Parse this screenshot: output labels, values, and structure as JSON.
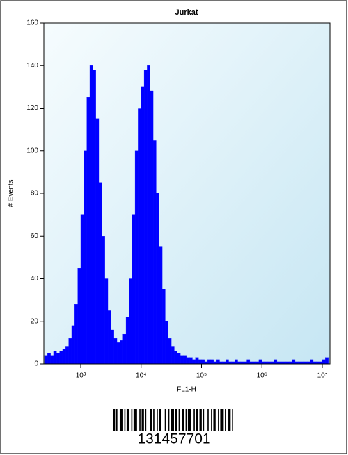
{
  "chart_data": {
    "type": "histogram",
    "title": "Jurkat",
    "x_label": "FL1-H",
    "y_label": "# Events",
    "xscale": "log",
    "color": "#0000ff",
    "xlim": [
      245,
      13400000
    ],
    "xticks": [
      {
        "value": 1000,
        "label": "10³"
      },
      {
        "value": 10000,
        "label": "10⁴"
      },
      {
        "value": 100000,
        "label": "10⁵"
      },
      {
        "value": 1000000,
        "label": "10⁶"
      },
      {
        "value": 10000000,
        "label": "10⁷"
      }
    ],
    "ylim": [
      0,
      160
    ],
    "yticks": [
      0,
      20,
      40,
      60,
      80,
      100,
      120,
      140,
      160
    ],
    "bins": [
      251.2,
      281.8,
      316.2,
      354.8,
      398.1,
      446.7,
      501.2,
      562.3,
      631.0,
      707.9,
      794.3,
      891.3,
      1000,
      1122,
      1259,
      1413,
      1585,
      1778,
      1995,
      2239,
      2512,
      2818,
      3162,
      3548,
      3981,
      4467,
      5012,
      5623,
      6310,
      7079,
      7943,
      8913,
      10000,
      11220,
      12590,
      14130,
      15850,
      17780,
      19950,
      22390,
      25120,
      28180,
      31620,
      35480,
      39810,
      44670,
      50120,
      56230,
      63100,
      70790,
      79430,
      89130,
      100000,
      112200,
      125900,
      141300,
      158500,
      177800,
      199500,
      223900,
      251200,
      281800,
      316200,
      354800,
      398100,
      446700,
      501200,
      562300,
      631000,
      707900,
      794300,
      891300,
      1000000,
      1122000,
      1259000,
      1413000,
      1585000,
      1778000,
      1995000,
      2239000,
      2512000,
      2818000,
      3162000,
      3548000,
      3981000,
      4467000,
      5012000,
      5623000,
      6310000,
      7079000,
      7943000,
      8913000,
      10000000,
      11220000,
      12590000
    ],
    "values": [
      4,
      5,
      4,
      6,
      5,
      6,
      7,
      8,
      12,
      18,
      28,
      45,
      70,
      100,
      125,
      140,
      138,
      115,
      85,
      60,
      40,
      25,
      16,
      12,
      10,
      11,
      14,
      22,
      40,
      70,
      100,
      120,
      130,
      138,
      140,
      128,
      105,
      80,
      55,
      35,
      20,
      12,
      8,
      6,
      5,
      4,
      4,
      3,
      3,
      2,
      3,
      2,
      2,
      1,
      2,
      2,
      1,
      2,
      1,
      1,
      2,
      1,
      1,
      2,
      1,
      1,
      1,
      2,
      1,
      1,
      1,
      2,
      1,
      1,
      1,
      1,
      2,
      1,
      1,
      1,
      1,
      1,
      2,
      1,
      1,
      1,
      1,
      1,
      2,
      1,
      1,
      1,
      2,
      3
    ]
  },
  "barcode": {
    "number": "131457701"
  }
}
